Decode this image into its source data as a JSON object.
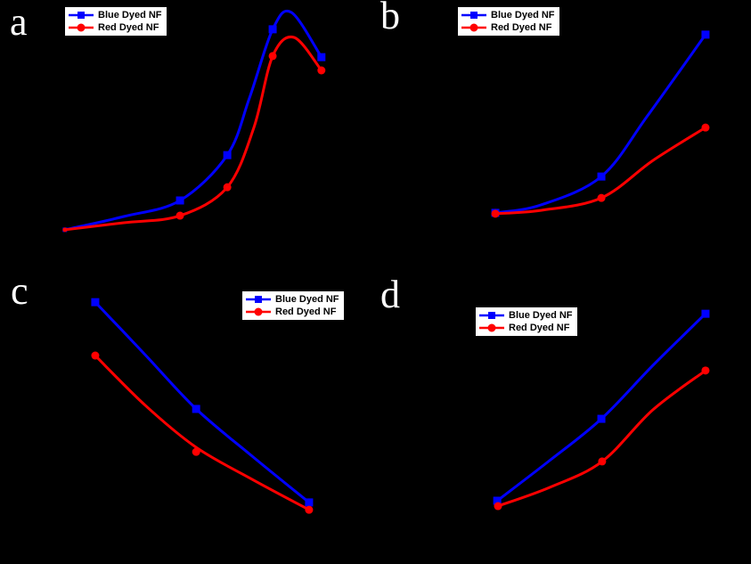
{
  "figure_labels": {
    "a": "a",
    "b": "b",
    "c": "c",
    "d": "d"
  },
  "legend": {
    "entries": [
      {
        "label": "Blue Dyed NF",
        "color": "#0000ff",
        "marker": "square"
      },
      {
        "label": "Red Dyed NF",
        "color": "#ff0000",
        "marker": "circle"
      }
    ]
  },
  "colors": {
    "background": "#000000",
    "legend_background": "#ffffff",
    "legend_border": "#000000",
    "legend_text": "#000000",
    "panel_label": "#ffffff",
    "blue_series": "#0000ff",
    "red_series": "#ff0000"
  },
  "chart_data": [
    {
      "panel": "a",
      "type": "line",
      "title": "",
      "axes_visible": false,
      "units": "normalized 0-100 of plot area (axis ticks/labels not visible on black background)",
      "legend_position": "top-left",
      "series": [
        {
          "name": "Blue Dyed NF",
          "color": "#0000ff",
          "marker": "square",
          "curve": [
            [
              17.3,
              18.4
            ],
            [
              33.0,
              23.1
            ],
            [
              48.0,
              28.8
            ],
            [
              60.6,
              44.9
            ],
            [
              66.5,
              65.2
            ],
            [
              72.7,
              89.6
            ],
            [
              77.7,
              95.6
            ],
            [
              85.7,
              79.7
            ]
          ],
          "markers": [
            [
              17.3,
              18.4,
              5
            ],
            [
              48.0,
              28.8,
              9
            ],
            [
              60.6,
              44.9,
              9
            ],
            [
              72.7,
              89.6,
              9
            ],
            [
              85.7,
              79.7,
              9
            ]
          ]
        },
        {
          "name": "Red Dyed NF",
          "color": "#ff0000",
          "marker": "circle",
          "curve": [
            [
              17.3,
              18.4
            ],
            [
              33.0,
              20.9
            ],
            [
              48.0,
              23.4
            ],
            [
              60.6,
              33.5
            ],
            [
              67.7,
              54.7
            ],
            [
              72.7,
              80.1
            ],
            [
              78.4,
              86.7
            ],
            [
              85.7,
              75.0
            ]
          ],
          "markers": [
            [
              17.3,
              18.4,
              5
            ],
            [
              48.0,
              23.4,
              9
            ],
            [
              60.6,
              33.5,
              9
            ],
            [
              72.7,
              80.1,
              9
            ],
            [
              85.7,
              75.0,
              9
            ]
          ]
        }
      ]
    },
    {
      "panel": "b",
      "type": "line",
      "title": "",
      "axes_visible": false,
      "units": "normalized 0-100 of plot area (axis ticks/labels not visible on black background)",
      "legend_position": "top-left",
      "series": [
        {
          "name": "Blue Dyed NF",
          "color": "#0000ff",
          "marker": "square",
          "curve": [
            [
              32.0,
              24.4
            ],
            [
              44.1,
              27.2
            ],
            [
              60.2,
              37.3
            ],
            [
              72.5,
              58.9
            ],
            [
              87.9,
              87.7
            ]
          ],
          "markers": [
            [
              32.0,
              24.4,
              9
            ],
            [
              60.2,
              37.3,
              9
            ],
            [
              87.9,
              87.7,
              9
            ]
          ]
        },
        {
          "name": "Red Dyed NF",
          "color": "#ff0000",
          "marker": "circle",
          "curve": [
            [
              32.0,
              24.1
            ],
            [
              44.1,
              25.3
            ],
            [
              60.2,
              29.7
            ],
            [
              73.9,
              43.0
            ],
            [
              87.9,
              54.7
            ]
          ],
          "markers": [
            [
              32.0,
              24.1,
              9
            ],
            [
              60.2,
              29.7,
              9
            ],
            [
              87.9,
              54.7,
              9
            ]
          ]
        }
      ]
    },
    {
      "panel": "c",
      "type": "line",
      "title": "",
      "axes_visible": false,
      "units": "normalized 0-100 of plot area (axis ticks/labels not visible on black background)",
      "legend_position": "top-right",
      "series": [
        {
          "name": "Blue Dyed NF",
          "color": "#0000ff",
          "marker": "square",
          "curve": [
            [
              25.4,
              92.7
            ],
            [
              38.7,
              74.1
            ],
            [
              52.3,
              54.9
            ],
            [
              67.2,
              38.2
            ],
            [
              82.4,
              21.8
            ]
          ],
          "markers": [
            [
              25.4,
              92.7,
              9
            ],
            [
              52.3,
              54.9,
              9
            ],
            [
              82.4,
              21.8,
              9
            ]
          ]
        },
        {
          "name": "Red Dyed NF",
          "color": "#ff0000",
          "marker": "circle",
          "curve": [
            [
              25.4,
              73.8
            ],
            [
              38.7,
              56.2
            ],
            [
              52.3,
              41.3
            ],
            [
              67.2,
              30.0
            ],
            [
              82.4,
              19.2
            ]
          ],
          "markers": [
            [
              25.4,
              73.8,
              9
            ],
            [
              52.3,
              39.7,
              9
            ],
            [
              82.4,
              19.2,
              9
            ]
          ]
        }
      ]
    },
    {
      "panel": "d",
      "type": "line",
      "title": "",
      "axes_visible": false,
      "units": "normalized 0-100 of plot area (axis ticks/labels not visible on black background)",
      "legend_position": "top-left",
      "series": [
        {
          "name": "Blue Dyed NF",
          "color": "#0000ff",
          "marker": "square",
          "curve": [
            [
              32.5,
              22.4
            ],
            [
              46.4,
              36.6
            ],
            [
              60.2,
              51.4
            ],
            [
              73.9,
              70.3
            ],
            [
              87.9,
              88.6
            ]
          ],
          "markers": [
            [
              32.5,
              22.4,
              9
            ],
            [
              60.2,
              51.4,
              9
            ],
            [
              87.9,
              88.6,
              9
            ]
          ]
        },
        {
          "name": "Red Dyed NF",
          "color": "#ff0000",
          "marker": "circle",
          "curve": [
            [
              32.7,
              20.5
            ],
            [
              46.4,
              27.1
            ],
            [
              60.4,
              36.3
            ],
            [
              73.9,
              54.6
            ],
            [
              87.9,
              68.5
            ]
          ],
          "markers": [
            [
              32.7,
              20.5,
              9
            ],
            [
              60.4,
              36.3,
              9
            ],
            [
              87.9,
              68.5,
              9
            ]
          ]
        }
      ]
    }
  ]
}
